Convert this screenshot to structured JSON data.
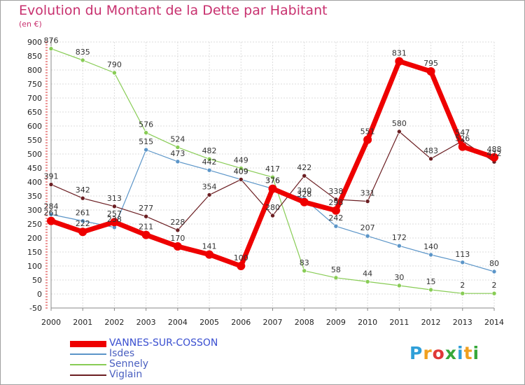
{
  "title": "Evolution du Montant de la Dette par Habitant",
  "unit": "(en €)",
  "logo": {
    "letters": [
      "P",
      "r",
      "o",
      "x",
      "i",
      "t",
      "i"
    ],
    "colors": [
      "#2f9fd8",
      "#f0a020",
      "#e03838",
      "#36a83a",
      "#2f9fd8",
      "#f0a020",
      "#36a83a"
    ]
  },
  "chart_data": {
    "type": "line",
    "title": "Evolution du Montant de la Dette par Habitant",
    "ylabel": "(en €)",
    "categories": [
      "2000",
      "2001",
      "2002",
      "2003",
      "2004",
      "2005",
      "2006",
      "2007",
      "2008",
      "2009",
      "2010",
      "2011",
      "2012",
      "2013",
      "2014"
    ],
    "ylim": [
      -50,
      900
    ],
    "yticks": [
      "-50",
      "0",
      "50",
      "100",
      "150",
      "200",
      "250",
      "300",
      "350",
      "400",
      "450",
      "500",
      "550",
      "600",
      "650",
      "700",
      "750",
      "800",
      "850",
      "900"
    ],
    "grid": true,
    "legend_position": "bottom-left",
    "series": [
      {
        "name": "VANNES-SUR-COSSON",
        "color": "#ee0000",
        "width": 7,
        "radius": 6,
        "values": [
          261,
          222,
          257,
          211,
          170,
          141,
          100,
          376,
          328,
          298,
          551,
          831,
          795,
          526,
          488
        ],
        "labels": [
          "261",
          "222",
          "257",
          "211",
          "170",
          "141",
          "100",
          "376",
          "328",
          "298",
          "551",
          "831",
          "795",
          "526",
          "488"
        ]
      },
      {
        "name": "Isdes",
        "color": "#5b95c8",
        "width": 1.2,
        "radius": 3,
        "values": [
          284,
          261,
          238,
          515,
          473,
          442,
          409,
          376,
          340,
          242,
          207,
          172,
          140,
          113,
          80
        ],
        "labels": [
          "284",
          "261",
          "238",
          "515",
          "473",
          "442",
          "409",
          "376",
          "340",
          "242",
          "207",
          "172",
          "140",
          "113",
          "80"
        ]
      },
      {
        "name": "Sennely",
        "color": "#88cc55",
        "width": 1.2,
        "radius": 3,
        "values": [
          876,
          835,
          790,
          576,
          524,
          482,
          449,
          417,
          83,
          58,
          44,
          30,
          15,
          2,
          2
        ],
        "labels": [
          "876",
          "835",
          "790",
          "576",
          "524",
          "482",
          "449",
          "417",
          "83",
          "58",
          "44",
          "30",
          "15",
          "2",
          "2"
        ]
      },
      {
        "name": "Viglain",
        "color": "#6b1e22",
        "width": 1.2,
        "radius": 3,
        "values": [
          391,
          342,
          313,
          277,
          228,
          354,
          409,
          280,
          422,
          338,
          331,
          580,
          483,
          547,
          472
        ],
        "labels": [
          "391",
          "342",
          "313",
          "277",
          "228",
          "354",
          "409",
          "280",
          "422",
          "338",
          "331",
          "580",
          "483",
          "547",
          "472"
        ]
      }
    ]
  }
}
